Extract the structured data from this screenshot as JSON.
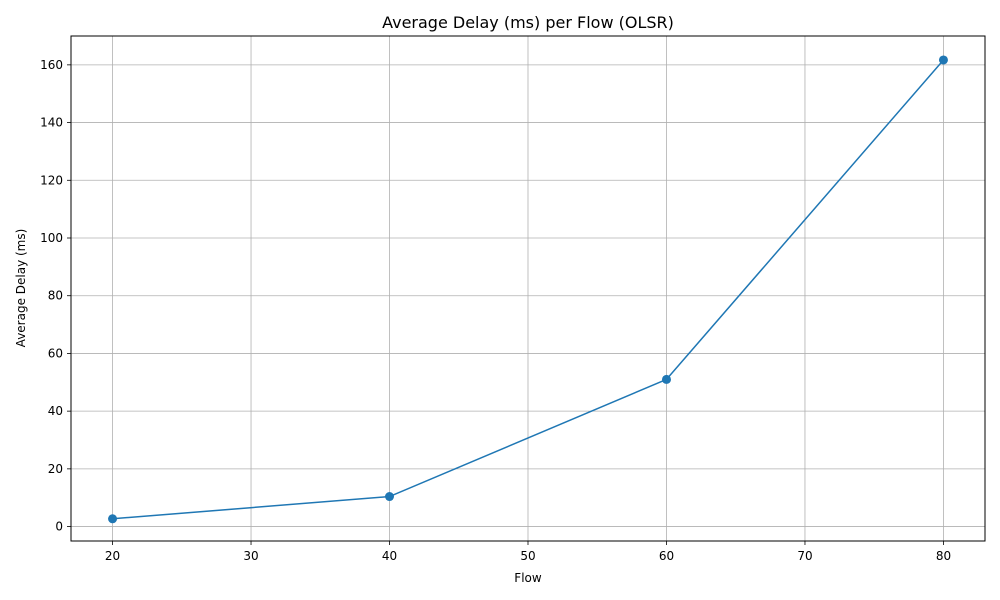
{
  "chart_data": {
    "type": "line",
    "title": "Average Delay (ms) per Flow (OLSR)",
    "xlabel": "Flow",
    "ylabel": "Average Delay (ms)",
    "x": [
      20,
      40,
      60,
      80
    ],
    "series": [
      {
        "values": [
          2.7,
          10.4,
          51.0,
          161.7
        ],
        "color": "#1f77b4",
        "marker": "circle"
      }
    ],
    "xlim": [
      17,
      83
    ],
    "ylim": [
      -5,
      170
    ],
    "xticks": [
      20,
      30,
      40,
      50,
      60,
      70,
      80
    ],
    "yticks": [
      0,
      20,
      40,
      60,
      80,
      100,
      120,
      140,
      160
    ],
    "grid": true
  }
}
